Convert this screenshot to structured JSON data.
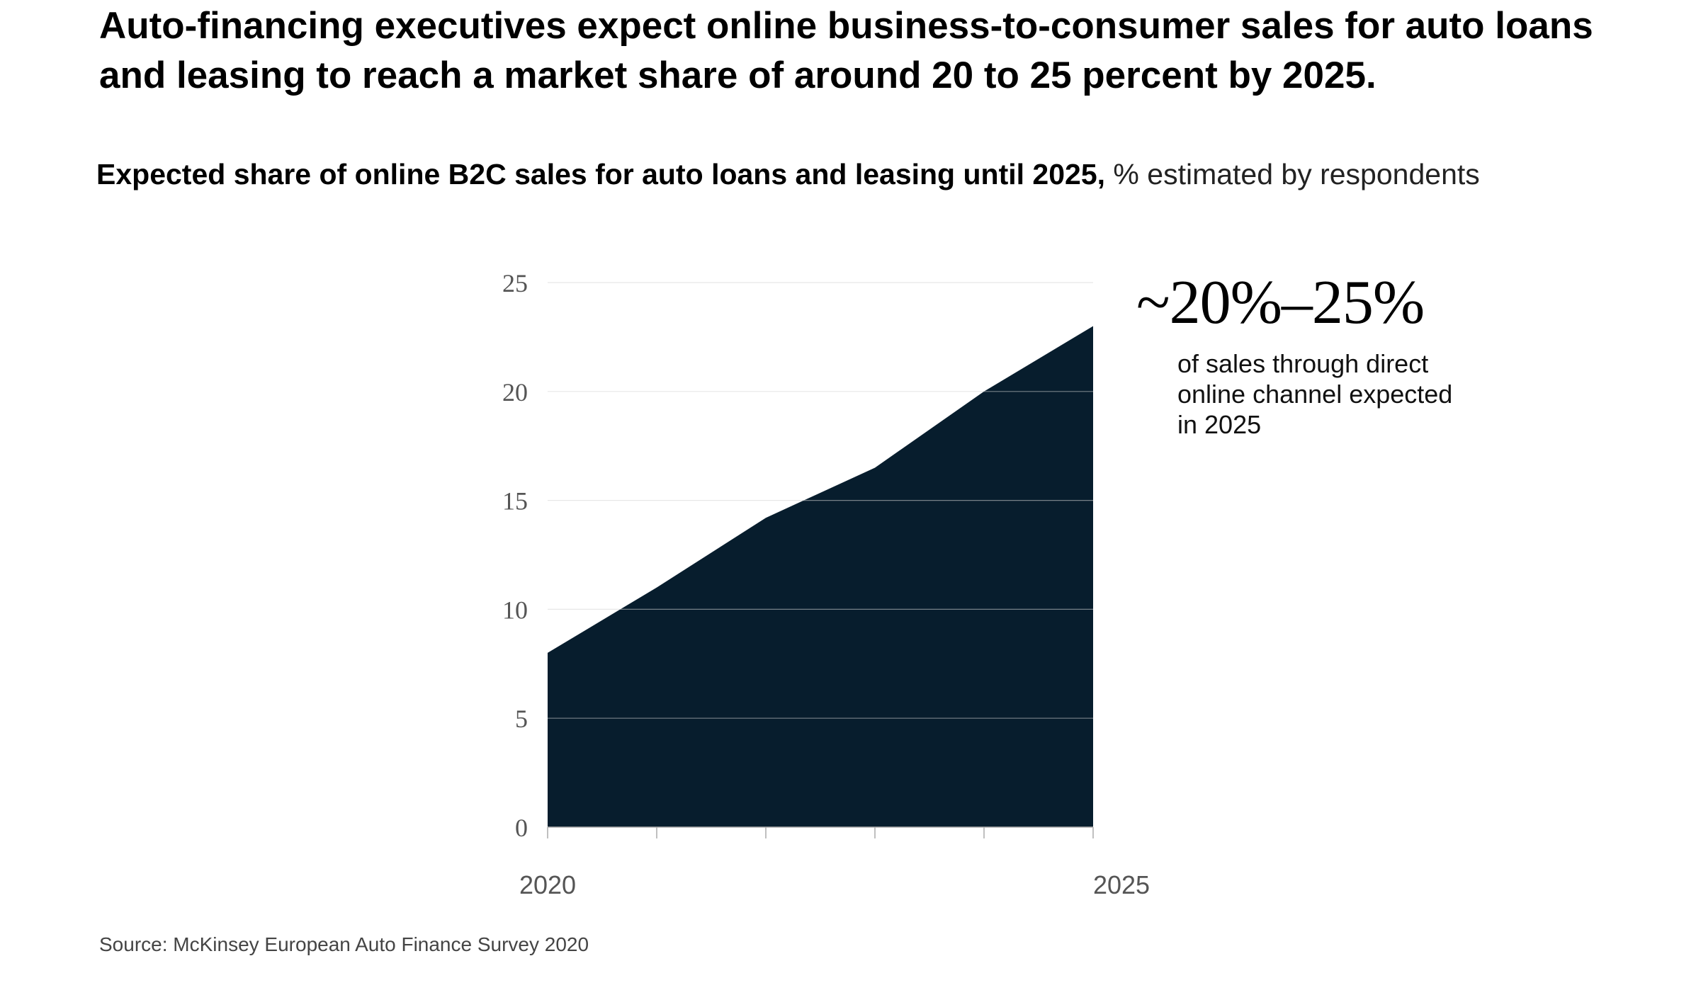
{
  "headline": "Auto-financing executives expect online business-to-consumer sales for auto loans and leasing to reach a market share of around 20 to 25 percent by 2025.",
  "subtitle": {
    "bold": "Expected share of online B2C sales for auto loans and leasing until 2025,",
    "unit": "% estimated by respondents"
  },
  "callout": {
    "value": "~20%–25%",
    "text": "of sales through direct online channel expected in 2025"
  },
  "source": "Source: McKinsey European Auto Finance Survey 2020",
  "colors": {
    "area": "#071d2d",
    "grid": "#d4d4d4",
    "axis": "#aaaaaa",
    "tick_text": "#555555"
  },
  "chart_data": {
    "type": "area",
    "x": [
      2020,
      2021,
      2022,
      2023,
      2024,
      2025
    ],
    "x_tick_labels": [
      "2020",
      "",
      "",
      "",
      "",
      "2025"
    ],
    "series": [
      {
        "values": [
          8,
          11,
          14.2,
          16.5,
          20,
          23
        ]
      }
    ],
    "ylim": [
      0,
      25
    ],
    "yticks": [
      0,
      5,
      10,
      15,
      20,
      25
    ],
    "grid": true,
    "title": "",
    "xlabel": "",
    "ylabel": ""
  }
}
